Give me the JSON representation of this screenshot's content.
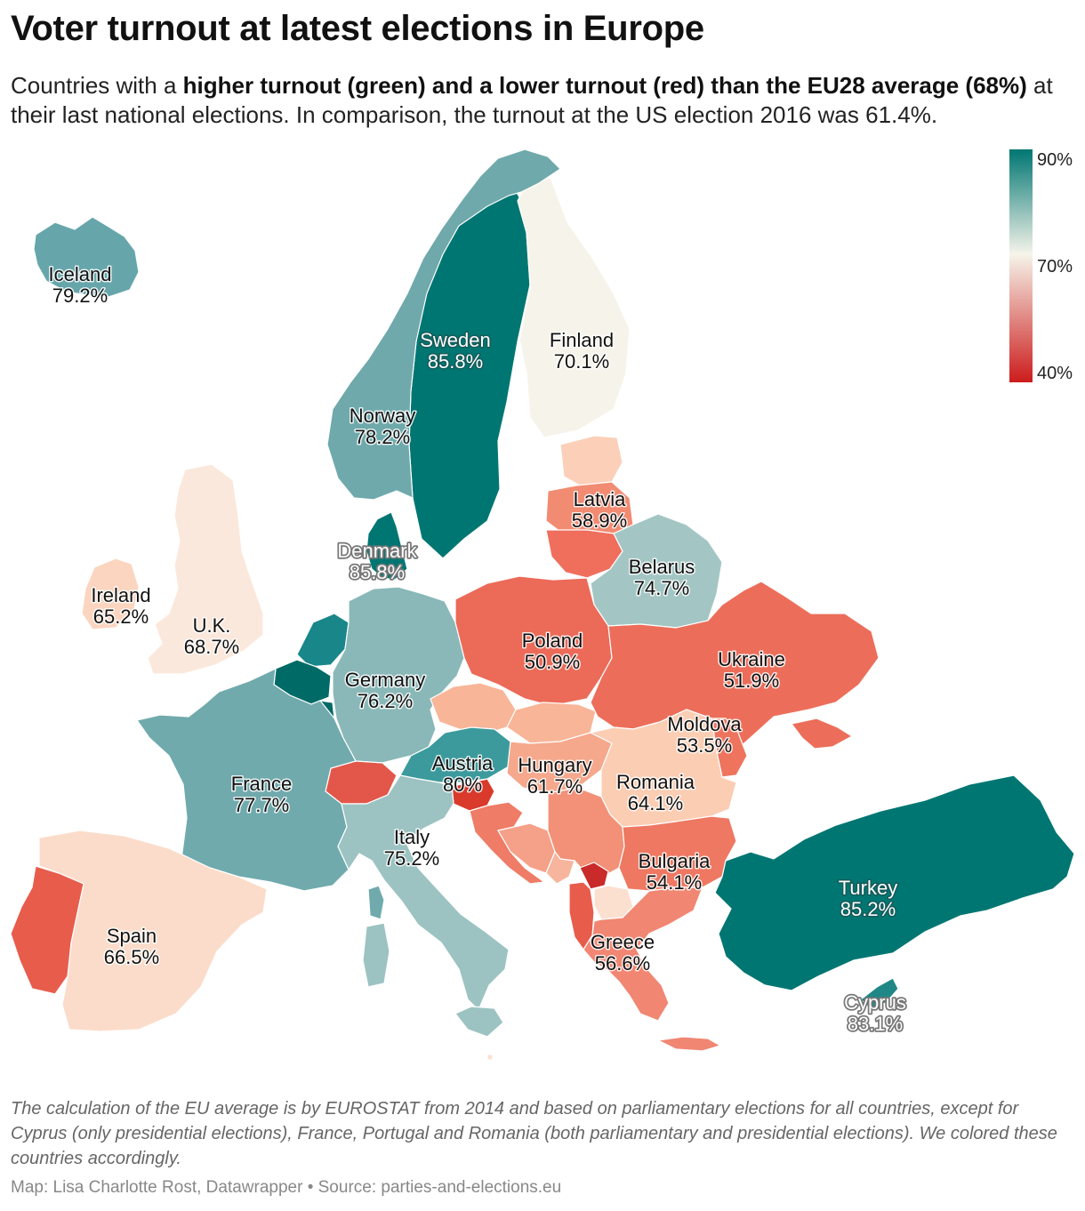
{
  "header": {
    "title": "Voter turnout at latest elections in Europe",
    "subtitle_pre": "Countries with a ",
    "subtitle_bold": "higher turnout (green) and a lower turnout (red) than the EU28 average (68%)",
    "subtitle_post": " at their last national elections. In comparison, the turnout at the US election 2016 was 61.4%."
  },
  "legend": {
    "labels": [
      "90%",
      "70%",
      "40%"
    ],
    "colors": [
      "#007672",
      "#f6f4ea",
      "#cc1c1c"
    ]
  },
  "countries": [
    {
      "name": "Iceland",
      "value": "79.2%",
      "color": "#66a6ab"
    },
    {
      "name": "Sweden",
      "value": "85.8%",
      "color": "#007672"
    },
    {
      "name": "Finland",
      "value": "70.1%",
      "color": "#f6f4ea"
    },
    {
      "name": "Norway",
      "value": "78.2%",
      "color": "#6fa9ab"
    },
    {
      "name": "Denmark",
      "value": "85.8%",
      "color": "#007672"
    },
    {
      "name": "Latvia",
      "value": "58.9%",
      "color": "#f18b72"
    },
    {
      "name": "Belarus",
      "value": "74.7%",
      "color": "#a3c6c4"
    },
    {
      "name": "Ireland",
      "value": "65.2%",
      "color": "#fbd5bf"
    },
    {
      "name": "U.K.",
      "value": "68.7%",
      "color": "#fbe8dc"
    },
    {
      "name": "Poland",
      "value": "50.9%",
      "color": "#ec6a58"
    },
    {
      "name": "Ukraine",
      "value": "51.9%",
      "color": "#ec6e5a"
    },
    {
      "name": "Germany",
      "value": "76.2%",
      "color": "#8ab8b8"
    },
    {
      "name": "Moldova",
      "value": "53.5%",
      "color": "#ee745e"
    },
    {
      "name": "Austria",
      "value": "80%",
      "color": "#3c9a9c"
    },
    {
      "name": "Hungary",
      "value": "61.7%",
      "color": "#f5a88c"
    },
    {
      "name": "France",
      "value": "77.7%",
      "color": "#70aaad"
    },
    {
      "name": "Romania",
      "value": "64.1%",
      "color": "#fbcdb3"
    },
    {
      "name": "Italy",
      "value": "75.2%",
      "color": "#9cc3c1"
    },
    {
      "name": "Bulgaria",
      "value": "54.1%",
      "color": "#ee7862"
    },
    {
      "name": "Turkey",
      "value": "85.2%",
      "color": "#007672"
    },
    {
      "name": "Spain",
      "value": "66.5%",
      "color": "#fbdcca"
    },
    {
      "name": "Greece",
      "value": "56.6%",
      "color": "#f18672"
    },
    {
      "name": "Cyprus",
      "value": "83.1%",
      "color": "#1f8886"
    }
  ],
  "other_colors": {
    "netherlands": "#19868a",
    "belgium": "#006a66",
    "luxembourg": "#006a66",
    "switzerland": "#e2574a",
    "slovenia": "#d93a2c",
    "croatia": "#ef7c66",
    "bosnia": "#f5a088",
    "serbia": "#f29078",
    "montenegro": "#f6b59c",
    "kosovo": "#c92a2a",
    "albania": "#e85c4c",
    "north_macedonia": "#fbdfcf",
    "czechia": "#f8b598",
    "slovakia": "#f8b598",
    "lithuania": "#ef6e5c",
    "estonia": "#fbcfb8",
    "portugal": "#e85c4c",
    "malta": "#fbdfcf"
  },
  "notes": "The calculation of the EU average is by EUROSTAT from 2014 and based on parliamentary elections for all countries, except for Cyprus (only presidential elections), France, Portugal and Romania (both parliamentary and presidential elections). We colored these countries accordingly.",
  "credit": "Map: Lisa Charlotte Rost, Datawrapper • Source: parties-and-elections.eu"
}
